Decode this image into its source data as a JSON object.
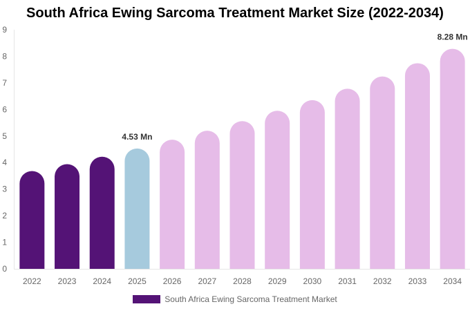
{
  "chart_data": {
    "type": "bar",
    "title": "South Africa Ewing Sarcoma Treatment Market Size (2022-2034)",
    "xlabel": "",
    "ylabel": "",
    "ylim": [
      0,
      9
    ],
    "yticks": [
      0,
      1,
      2,
      3,
      4,
      5,
      6,
      7,
      8,
      9
    ],
    "grid": false,
    "legend_position": "bottom",
    "categories": [
      "2022",
      "2023",
      "2024",
      "2025",
      "2026",
      "2027",
      "2028",
      "2029",
      "2030",
      "2031",
      "2032",
      "2033",
      "2034"
    ],
    "series": [
      {
        "name": "South Africa Ewing Sarcoma Treatment Market",
        "values": [
          3.68,
          3.94,
          4.22,
          4.53,
          4.86,
          5.2,
          5.56,
          5.95,
          6.35,
          6.78,
          7.24,
          7.74,
          8.28
        ],
        "colors": [
          "#541376",
          "#541376",
          "#541376",
          "#a6cadd",
          "#e6bce8",
          "#e6bce8",
          "#e6bce8",
          "#e6bce8",
          "#e6bce8",
          "#e6bce8",
          "#e6bce8",
          "#e6bce8",
          "#e6bce8"
        ]
      }
    ],
    "data_labels": [
      {
        "category": "2025",
        "text": "4.53 Mn"
      },
      {
        "category": "2034",
        "text": "8.28 Mn"
      }
    ],
    "legend_color": "#541376"
  }
}
